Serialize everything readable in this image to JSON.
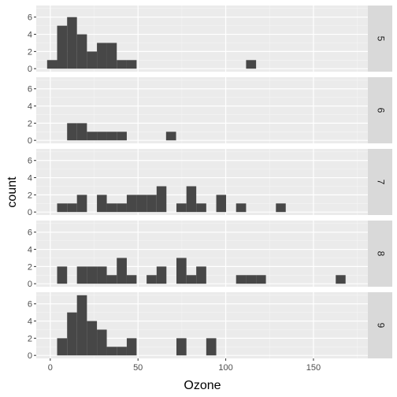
{
  "chart_data": {
    "type": "bar",
    "subtype": "faceted-histogram",
    "xlabel": "Ozone",
    "ylabel": "count",
    "xlim": [
      -8,
      181
    ],
    "ylim": [
      -0.35,
      7.35
    ],
    "x_ticks": [
      0,
      50,
      100,
      150
    ],
    "y_ticks": [
      0,
      2,
      4,
      6
    ],
    "grid": true,
    "legend": "none",
    "strip_position": "right",
    "bin_width": 5.67,
    "colors": {
      "bar": "#474747",
      "panel": "#ebebeb",
      "strip": "#d9d9d9",
      "grid_major": "#ffffff",
      "grid_minor": "#f5f5f5"
    },
    "panels": [
      {
        "label": "5",
        "bins": [
          {
            "x0": -1.8,
            "x1": 3.9,
            "count": 1
          },
          {
            "x0": 3.9,
            "x1": 9.6,
            "count": 5
          },
          {
            "x0": 9.6,
            "x1": 15.2,
            "count": 6
          },
          {
            "x0": 15.2,
            "x1": 20.9,
            "count": 4
          },
          {
            "x0": 20.9,
            "x1": 26.6,
            "count": 2
          },
          {
            "x0": 26.6,
            "x1": 32.2,
            "count": 3
          },
          {
            "x0": 32.2,
            "x1": 37.9,
            "count": 3
          },
          {
            "x0": 37.9,
            "x1": 43.6,
            "count": 1
          },
          {
            "x0": 43.6,
            "x1": 49.2,
            "count": 1
          },
          {
            "x0": 111.6,
            "x1": 117.3,
            "count": 1
          }
        ]
      },
      {
        "label": "6",
        "bins": [
          {
            "x0": 9.6,
            "x1": 15.2,
            "count": 2
          },
          {
            "x0": 15.2,
            "x1": 20.9,
            "count": 2
          },
          {
            "x0": 20.9,
            "x1": 26.6,
            "count": 1
          },
          {
            "x0": 26.6,
            "x1": 32.2,
            "count": 1
          },
          {
            "x0": 32.2,
            "x1": 37.9,
            "count": 1
          },
          {
            "x0": 37.9,
            "x1": 43.6,
            "count": 1
          },
          {
            "x0": 66.0,
            "x1": 71.7,
            "count": 1
          }
        ]
      },
      {
        "label": "7",
        "bins": [
          {
            "x0": 3.9,
            "x1": 9.6,
            "count": 1
          },
          {
            "x0": 9.6,
            "x1": 15.2,
            "count": 1
          },
          {
            "x0": 15.2,
            "x1": 20.9,
            "count": 2
          },
          {
            "x0": 26.6,
            "x1": 32.2,
            "count": 2
          },
          {
            "x0": 32.2,
            "x1": 37.9,
            "count": 1
          },
          {
            "x0": 37.9,
            "x1": 43.6,
            "count": 1
          },
          {
            "x0": 43.6,
            "x1": 49.2,
            "count": 2
          },
          {
            "x0": 49.2,
            "x1": 54.9,
            "count": 2
          },
          {
            "x0": 54.9,
            "x1": 60.6,
            "count": 2
          },
          {
            "x0": 60.6,
            "x1": 66.2,
            "count": 3
          },
          {
            "x0": 71.9,
            "x1": 77.6,
            "count": 1
          },
          {
            "x0": 77.6,
            "x1": 83.2,
            "count": 3
          },
          {
            "x0": 83.2,
            "x1": 88.9,
            "count": 1
          },
          {
            "x0": 94.6,
            "x1": 100.2,
            "count": 2
          },
          {
            "x0": 105.9,
            "x1": 111.6,
            "count": 1
          },
          {
            "x0": 128.6,
            "x1": 134.2,
            "count": 1
          }
        ]
      },
      {
        "label": "8",
        "bins": [
          {
            "x0": 3.9,
            "x1": 9.6,
            "count": 2
          },
          {
            "x0": 15.2,
            "x1": 20.9,
            "count": 2
          },
          {
            "x0": 20.9,
            "x1": 26.6,
            "count": 2
          },
          {
            "x0": 26.6,
            "x1": 32.2,
            "count": 2
          },
          {
            "x0": 32.2,
            "x1": 37.9,
            "count": 1
          },
          {
            "x0": 37.9,
            "x1": 43.6,
            "count": 3
          },
          {
            "x0": 43.6,
            "x1": 49.2,
            "count": 1
          },
          {
            "x0": 54.9,
            "x1": 60.6,
            "count": 1
          },
          {
            "x0": 60.6,
            "x1": 66.2,
            "count": 2
          },
          {
            "x0": 71.9,
            "x1": 77.6,
            "count": 3
          },
          {
            "x0": 77.6,
            "x1": 83.2,
            "count": 1
          },
          {
            "x0": 83.2,
            "x1": 88.9,
            "count": 2
          },
          {
            "x0": 105.9,
            "x1": 111.6,
            "count": 1
          },
          {
            "x0": 111.6,
            "x1": 117.3,
            "count": 1
          },
          {
            "x0": 117.3,
            "x1": 122.9,
            "count": 1
          },
          {
            "x0": 162.7,
            "x1": 168.3,
            "count": 1
          }
        ]
      },
      {
        "label": "9",
        "bins": [
          {
            "x0": 3.9,
            "x1": 9.6,
            "count": 2
          },
          {
            "x0": 9.6,
            "x1": 15.2,
            "count": 5
          },
          {
            "x0": 15.2,
            "x1": 20.9,
            "count": 7
          },
          {
            "x0": 20.9,
            "x1": 26.6,
            "count": 4
          },
          {
            "x0": 26.6,
            "x1": 32.2,
            "count": 3
          },
          {
            "x0": 32.2,
            "x1": 37.9,
            "count": 1
          },
          {
            "x0": 37.9,
            "x1": 43.6,
            "count": 1
          },
          {
            "x0": 43.6,
            "x1": 49.2,
            "count": 2
          },
          {
            "x0": 71.9,
            "x1": 77.6,
            "count": 2
          },
          {
            "x0": 88.9,
            "x1": 94.6,
            "count": 2
          }
        ]
      }
    ]
  }
}
